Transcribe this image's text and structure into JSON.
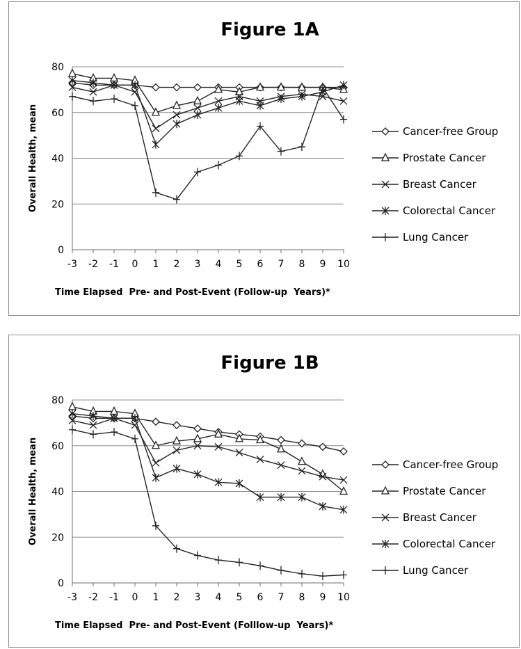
{
  "chart_data": [
    {
      "type": "line",
      "title": "Figure 1A",
      "xlabel": "Time Elapsed  Pre- and Post-Event (Follow-up  Years)*",
      "ylabel": "Overall Health, mean",
      "x": [
        -3,
        -2,
        -1,
        0,
        1,
        2,
        3,
        4,
        5,
        6,
        7,
        8,
        9,
        10
      ],
      "xlim": [
        -3,
        10
      ],
      "ylim": [
        0,
        80
      ],
      "yticks": [
        0,
        20,
        40,
        60,
        80
      ],
      "grid": "horizontal",
      "legend": "right",
      "series": [
        {
          "name": "Cancer-free Group",
          "marker": "diamond",
          "values": [
            73,
            72,
            72,
            72,
            71,
            71,
            71,
            71,
            71,
            71,
            71,
            71,
            71,
            71
          ]
        },
        {
          "name": "Prostate Cancer",
          "marker": "triangle",
          "values": [
            77,
            75,
            75,
            74,
            60,
            63,
            65,
            70,
            69,
            71,
            71,
            71,
            71,
            70
          ]
        },
        {
          "name": "Breast Cancer",
          "marker": "x",
          "values": [
            71,
            69,
            72,
            69,
            53,
            59,
            62,
            65,
            67,
            65,
            67,
            68,
            67,
            65
          ]
        },
        {
          "name": "Colorectal Cancer",
          "marker": "asterisk",
          "values": [
            74,
            73,
            72,
            72,
            46,
            55,
            59,
            62,
            65,
            63,
            66,
            67,
            69,
            72
          ]
        },
        {
          "name": "Lung Cancer",
          "marker": "plus",
          "values": [
            67,
            65,
            66,
            63,
            25,
            22,
            34,
            37,
            41,
            54,
            43,
            45,
            71,
            57
          ]
        }
      ]
    },
    {
      "type": "line",
      "title": "Figure 1B",
      "xlabel": "Time Elapsed  Pre- and Post-Event (Folllow-up  Years)*",
      "ylabel": "Overall Health, mean",
      "x": [
        -3,
        -2,
        -1,
        0,
        1,
        2,
        3,
        4,
        5,
        6,
        7,
        8,
        9,
        10
      ],
      "xlim": [
        -3,
        10
      ],
      "ylim": [
        0,
        80
      ],
      "yticks": [
        0,
        20,
        40,
        60,
        80
      ],
      "grid": "horizontal",
      "legend": "right",
      "series": [
        {
          "name": "Cancer-free Group",
          "marker": "diamond",
          "values": [
            73,
            72,
            72,
            72,
            70.5,
            69,
            67.5,
            66,
            65,
            64,
            62.5,
            61,
            59.5,
            57.5
          ]
        },
        {
          "name": "Prostate Cancer",
          "marker": "triangle",
          "values": [
            77,
            75,
            75,
            74,
            60,
            62,
            63,
            65,
            63,
            62.5,
            58.5,
            53,
            47.5,
            40
          ]
        },
        {
          "name": "Breast Cancer",
          "marker": "x",
          "values": [
            71,
            69,
            72,
            69,
            52.5,
            58,
            60,
            59.5,
            57,
            54,
            51.5,
            49,
            46.5,
            45
          ]
        },
        {
          "name": "Colorectal Cancer",
          "marker": "asterisk",
          "values": [
            74,
            73,
            72,
            72,
            46,
            50,
            47.5,
            44,
            43.5,
            37.5,
            37.5,
            37.5,
            33.5,
            32
          ]
        },
        {
          "name": "Lung Cancer",
          "marker": "plus",
          "values": [
            67,
            65,
            66,
            63,
            25,
            15,
            12,
            10,
            9,
            7.5,
            5.5,
            4,
            3,
            3.5
          ]
        }
      ]
    }
  ]
}
